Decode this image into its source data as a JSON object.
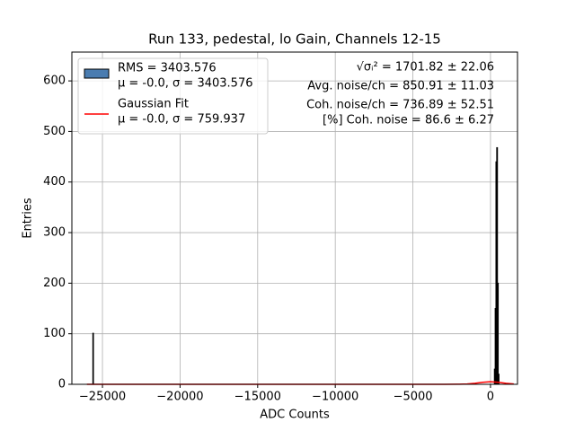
{
  "chart_data": {
    "type": "histogram",
    "title": "Run 133, pedestal, lo Gain, Channels 12-15",
    "xlabel": "ADC Counts",
    "ylabel": "Entries",
    "xlim": [
      -26970,
      1740
    ],
    "ylim": [
      0,
      657
    ],
    "xticks": [
      {
        "value": -25000,
        "label": "−25000"
      },
      {
        "value": -20000,
        "label": "−20000"
      },
      {
        "value": -15000,
        "label": "−15000"
      },
      {
        "value": -10000,
        "label": "−10000"
      },
      {
        "value": -5000,
        "label": "−5000"
      },
      0
    ],
    "yticks": [
      0,
      100,
      200,
      300,
      400,
      500,
      600
    ],
    "grid": true,
    "legend": "upper left",
    "series": [
      {
        "type": "histogram",
        "name": "RMS = 3403.576",
        "detail": "μ = -0.0, σ = 3403.576",
        "color": "#4a7cb0",
        "bins": [
          -25620,
          -25580,
          250,
          300,
          350,
          400,
          450,
          500,
          550
        ],
        "values": [
          101,
          0,
          30,
          150,
          440,
          468,
          200,
          20
        ]
      },
      {
        "type": "line",
        "name": "Gaussian Fit",
        "detail": "μ = -0.0, σ = 759.937",
        "color": "#ff0000",
        "x": [
          -26000,
          -3000,
          -2000,
          -1500,
          -1000,
          -500,
          0,
          500,
          1000,
          1500
        ],
        "values": [
          0,
          0,
          0.16,
          0.71,
          2.1,
          4.03,
          5,
          4.03,
          2.1,
          0.71
        ]
      }
    ],
    "annotations": [
      "√σᵢ² = 1701.82 ± 22.06",
      "Avg. noise/ch = 850.91 ± 11.03",
      "Coh. noise/ch = 736.89 ± 52.51",
      "[%] Coh. noise = 86.6 ± 6.27"
    ]
  }
}
